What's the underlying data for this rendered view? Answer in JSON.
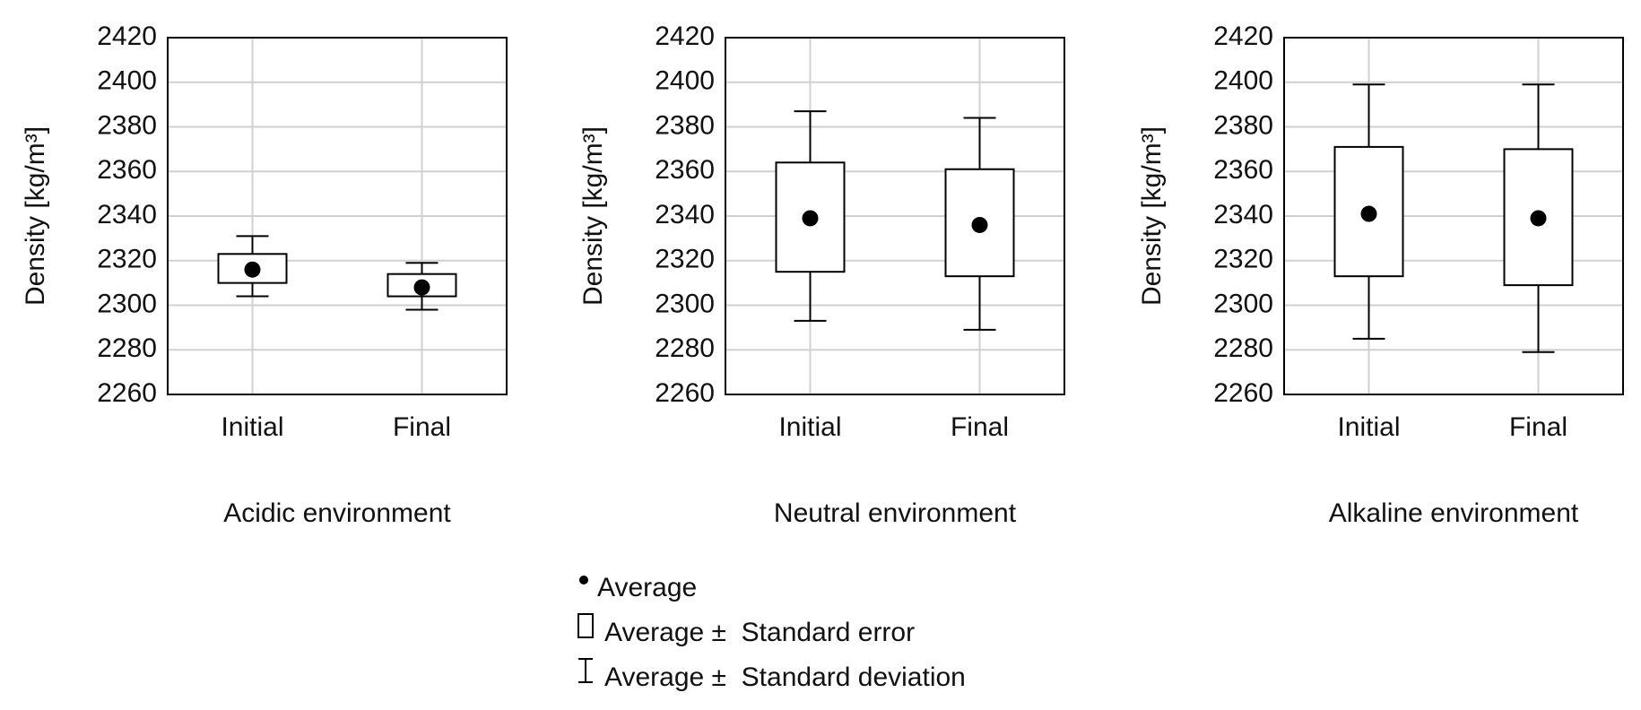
{
  "chart_data": [
    {
      "type": "box",
      "xlabel": "Acidic environment",
      "ylabel": "Density [kg/m³]",
      "categories": [
        "Initial",
        "Final"
      ],
      "mean": [
        2316,
        2308
      ],
      "se_box": [
        [
          2310,
          2323
        ],
        [
          2304,
          2314
        ]
      ],
      "sd_whiskers": [
        [
          2304,
          2331
        ],
        [
          2298,
          2319
        ]
      ],
      "ylim": [
        2260,
        2420
      ],
      "yticks": [
        2260,
        2280,
        2300,
        2320,
        2340,
        2360,
        2380,
        2400,
        2420
      ],
      "grid": true
    },
    {
      "type": "box",
      "xlabel": "Neutral environment",
      "ylabel": "Density [kg/m³]",
      "categories": [
        "Initial",
        "Final"
      ],
      "mean": [
        2339,
        2336
      ],
      "se_box": [
        [
          2315,
          2364
        ],
        [
          2313,
          2361
        ]
      ],
      "sd_whiskers": [
        [
          2293,
          2387
        ],
        [
          2289,
          2384
        ]
      ],
      "ylim": [
        2260,
        2420
      ],
      "yticks": [
        2260,
        2280,
        2300,
        2320,
        2340,
        2360,
        2380,
        2400,
        2420
      ],
      "grid": true
    },
    {
      "type": "box",
      "xlabel": "Alkaline environment",
      "ylabel": "Density [kg/m³]",
      "categories": [
        "Initial",
        "Final"
      ],
      "mean": [
        2341,
        2339
      ],
      "se_box": [
        [
          2313,
          2371
        ],
        [
          2309,
          2370
        ]
      ],
      "sd_whiskers": [
        [
          2285,
          2399
        ],
        [
          2279,
          2399
        ]
      ],
      "ylim": [
        2260,
        2420
      ],
      "yticks": [
        2260,
        2280,
        2300,
        2320,
        2340,
        2360,
        2380,
        2400,
        2420
      ],
      "grid": true
    }
  ],
  "legend": [
    "Average",
    "Average ±  Standard error",
    "Average ±  Standard deviation"
  ]
}
